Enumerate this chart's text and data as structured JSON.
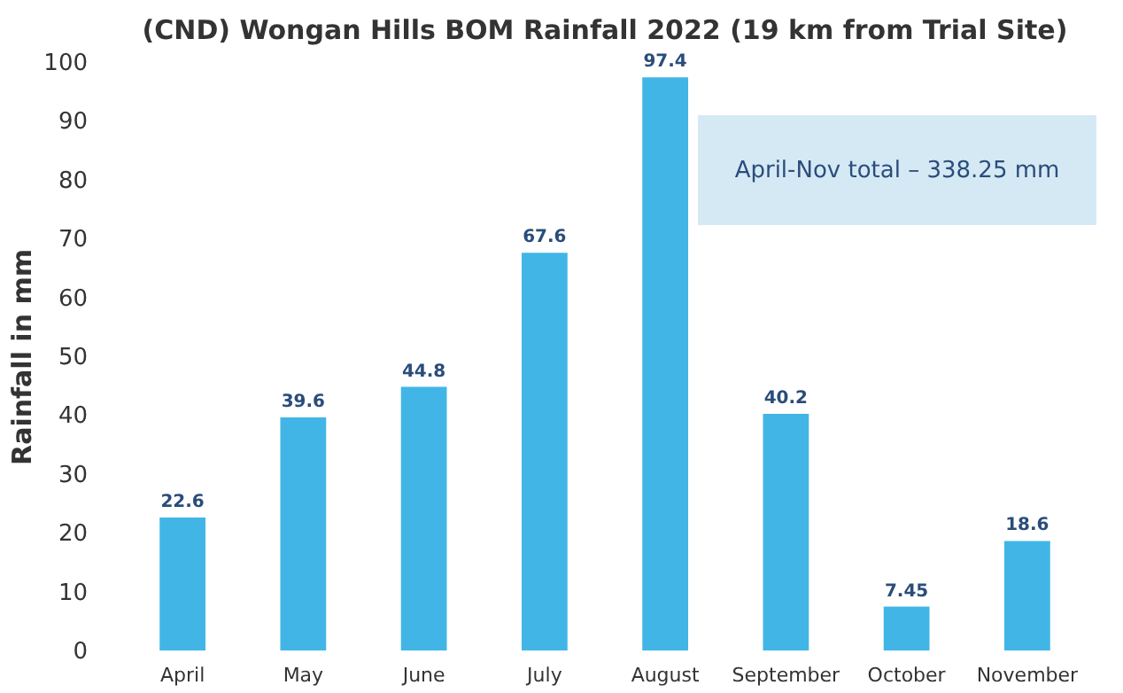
{
  "chart_data": {
    "type": "bar",
    "title": "(CND) Wongan Hills BOM Rainfall 2022 (19 km from Trial Site)",
    "ylabel": "Rainfall in mm",
    "categories": [
      "April",
      "May",
      "June",
      "July",
      "August",
      "September",
      "October",
      "November"
    ],
    "series": [
      {
        "color": "#41b6e6",
        "values": [
          22.6,
          39.6,
          44.8,
          67.6,
          97.4,
          40.2,
          7.45,
          18.6
        ]
      }
    ],
    "data_labels": true,
    "ylim": [
      0,
      100
    ],
    "yticks": [
      0,
      10,
      20,
      30,
      40,
      50,
      60,
      70,
      80,
      90,
      100
    ],
    "grid": false,
    "annotations": [
      "April-Nov total – 338.25 mm"
    ]
  }
}
